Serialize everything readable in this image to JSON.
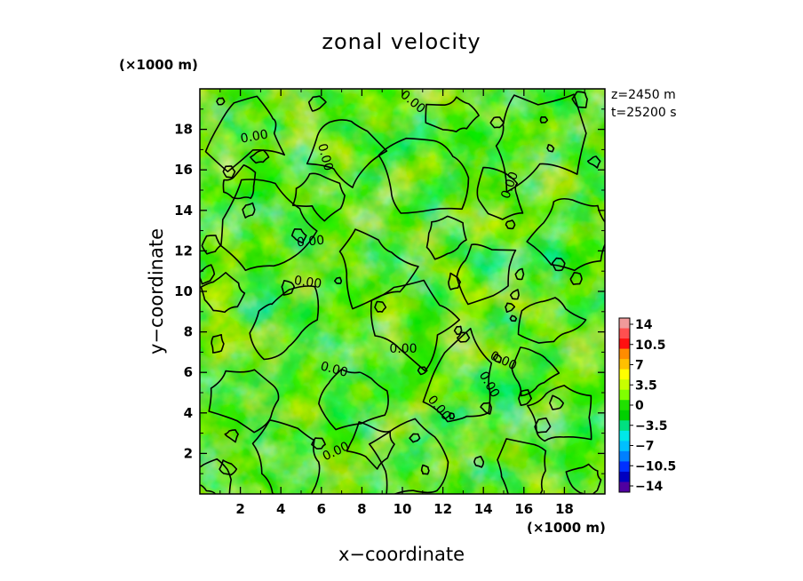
{
  "chart_data": {
    "type": "heatmap",
    "title": "zonal velocity",
    "xlabel": "x−coordinate",
    "ylabel": "y−coordinate",
    "x_unit": "(×1000 m)",
    "y_unit": "(×1000 m)",
    "xlim": [
      0,
      20
    ],
    "ylim": [
      0,
      20
    ],
    "x_ticks": [
      "2",
      "4",
      "6",
      "8",
      "10",
      "12",
      "14",
      "16",
      "18"
    ],
    "y_ticks": [
      "2",
      "4",
      "6",
      "8",
      "10",
      "12",
      "14",
      "16",
      "18"
    ],
    "annotations": [
      "z=2450 m",
      "t=25200 s"
    ],
    "contour_label": "0.00",
    "colorbar": {
      "range": [
        -14,
        14
      ],
      "labels": [
        "14",
        "10.5",
        "7",
        "3.5",
        "0",
        "−3.5",
        "−7",
        "−10.5",
        "−14"
      ],
      "colors": [
        "#f09a9a",
        "#ff5050",
        "#ff1010",
        "#ff8c00",
        "#ffc000",
        "#ffff00",
        "#c8ff00",
        "#80ff00",
        "#20e000",
        "#00d000",
        "#00e080",
        "#00e8e8",
        "#00c0ff",
        "#0080ff",
        "#0030ff",
        "#0000c0",
        "#5000a0"
      ]
    }
  }
}
